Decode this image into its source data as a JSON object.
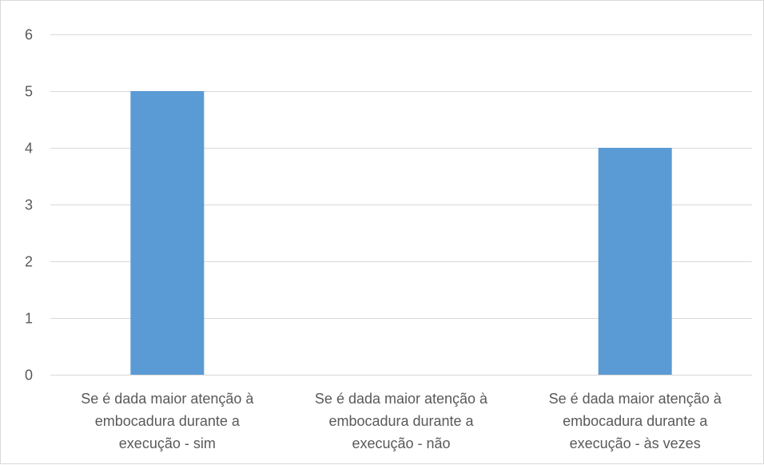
{
  "chart_data": {
    "type": "bar",
    "categories": [
      [
        "Se é dada maior atenção à",
        "embocadura durante a",
        "execução - sim"
      ],
      [
        "Se é dada maior atenção à",
        "embocadura durante a",
        "execução - não"
      ],
      [
        "Se é dada maior atenção à",
        "embocadura durante a",
        "execução - às vezes"
      ]
    ],
    "values": [
      5,
      0,
      4
    ],
    "y_ticks": [
      "0",
      "1",
      "2",
      "3",
      "4",
      "5",
      "6"
    ],
    "ylim": [
      0,
      6
    ],
    "grid": true,
    "legend": "none",
    "bar_color": "#5b9bd5",
    "grid_color": "#d9d9d9",
    "text_color": "#595959"
  }
}
